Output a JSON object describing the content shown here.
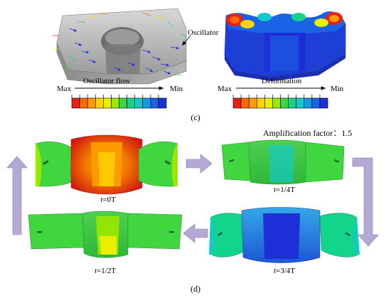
{
  "panel_c": {
    "callout_label": "Oscillator",
    "flow_legend": {
      "title": "Oscillator flow",
      "max_label": "Max",
      "min_label": "Min"
    },
    "deform_legend": {
      "title": "Deformation",
      "max_label": "Max",
      "min_label": "Min"
    },
    "panel_label": "(c)",
    "colorbar_colors": [
      "#e8201a",
      "#ff6a00",
      "#ff9b00",
      "#ffd400",
      "#e9f000",
      "#9be800",
      "#3fd63f",
      "#12d48b",
      "#14c9c9",
      "#149be6",
      "#1a62e6",
      "#1d2fd6"
    ]
  },
  "panel_d": {
    "amplification_text": "Amplification factor：1.5",
    "panel_label": "(d)",
    "states": [
      {
        "t": "t",
        "rest": "=0T"
      },
      {
        "t": "t",
        "rest": "=1/4T"
      },
      {
        "t": "t",
        "rest": "=1/2T"
      },
      {
        "t": "t",
        "rest": "=3/4T"
      }
    ]
  }
}
